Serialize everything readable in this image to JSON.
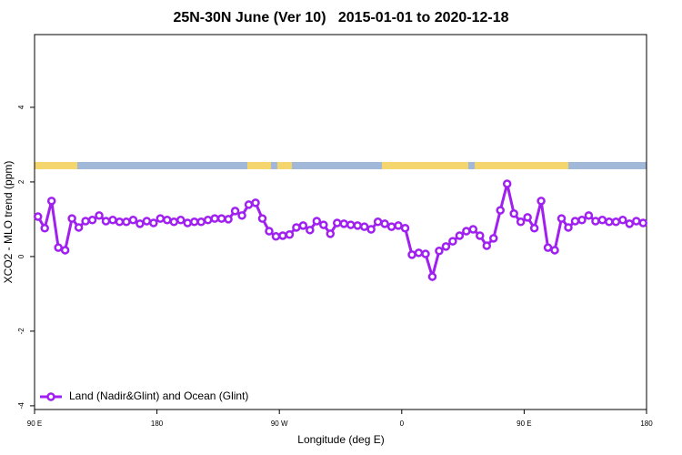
{
  "chart_data": {
    "type": "line",
    "title": "25N-30N June (Ver 10)   2015-01-01 to 2020-12-18",
    "x_label": "Longitude (deg E)",
    "y_label": "XCO2 - MLO trend (ppm)",
    "xlim": [
      90,
      540
    ],
    "ylim": [
      -4.1,
      5.95
    ],
    "xticks": [
      {
        "value": 90,
        "label": "90 E"
      },
      180,
      {
        "value": 270,
        "label": "90 W"
      },
      {
        "value": 360,
        "label": "0"
      },
      {
        "value": 450,
        "label": "90 E"
      },
      {
        "value": 540,
        "label": "180"
      }
    ],
    "yticks": [
      -4,
      -2,
      0,
      2,
      4
    ],
    "legend_position": "bottomleft",
    "x": [
      92.5,
      97.5,
      102.5,
      107.5,
      112.5,
      117.5,
      122.5,
      127.5,
      132.5,
      137.5,
      142.5,
      147.5,
      152.5,
      157.5,
      162.5,
      167.5,
      172.5,
      177.5,
      182.5,
      187.5,
      192.5,
      197.5,
      202.5,
      207.5,
      212.5,
      217.5,
      222.5,
      227.5,
      232.5,
      237.5,
      242.5,
      247.5,
      252.5,
      257.5,
      262.5,
      267.5,
      272.5,
      277.5,
      282.5,
      287.5,
      292.5,
      297.5,
      302.5,
      307.5,
      312.5,
      317.5,
      322.5,
      327.5,
      332.5,
      337.5,
      342.5,
      347.5,
      352.5,
      357.5,
      362.5,
      367.5,
      372.5,
      377.5,
      382.5,
      387.5,
      392.5,
      397.5,
      402.5,
      407.5,
      412.5,
      417.5,
      422.5,
      427.5,
      432.5,
      437.5,
      442.5,
      447.5,
      452.5,
      457.5,
      462.5,
      467.5,
      472.5,
      477.5,
      482.5,
      487.5,
      492.5,
      497.5,
      502.5,
      507.5,
      512.5,
      517.5,
      522.5,
      527.5,
      532.5,
      537.5
    ],
    "series": [
      {
        "name": "Land (Nadir&Glint) and Ocean (Glint)",
        "color": "#a020f0",
        "values": [
          1.07,
          0.76,
          1.49,
          0.24,
          0.17,
          1.02,
          0.78,
          0.95,
          0.98,
          1.1,
          0.95,
          0.98,
          0.93,
          0.93,
          0.98,
          0.88,
          0.95,
          0.9,
          1.02,
          0.98,
          0.93,
          0.98,
          0.9,
          0.93,
          0.93,
          0.98,
          1.02,
          1.02,
          1.0,
          1.22,
          1.1,
          1.39,
          1.44,
          1.02,
          0.68,
          0.54,
          0.56,
          0.59,
          0.78,
          0.83,
          0.71,
          0.95,
          0.85,
          0.61,
          0.9,
          0.88,
          0.85,
          0.83,
          0.8,
          0.73,
          0.93,
          0.88,
          0.8,
          0.83,
          0.76,
          0.05,
          0.1,
          0.07,
          -0.54,
          0.15,
          0.27,
          0.41,
          0.56,
          0.68,
          0.73,
          0.56,
          0.29,
          0.49,
          1.24,
          1.95,
          1.15,
          0.93,
          1.05,
          0.76,
          1.49,
          0.24,
          0.17,
          1.02,
          0.78,
          0.95,
          0.98,
          1.1,
          0.95,
          0.98,
          0.93,
          0.93,
          0.98,
          0.88,
          0.95,
          0.9
        ]
      }
    ]
  }
}
